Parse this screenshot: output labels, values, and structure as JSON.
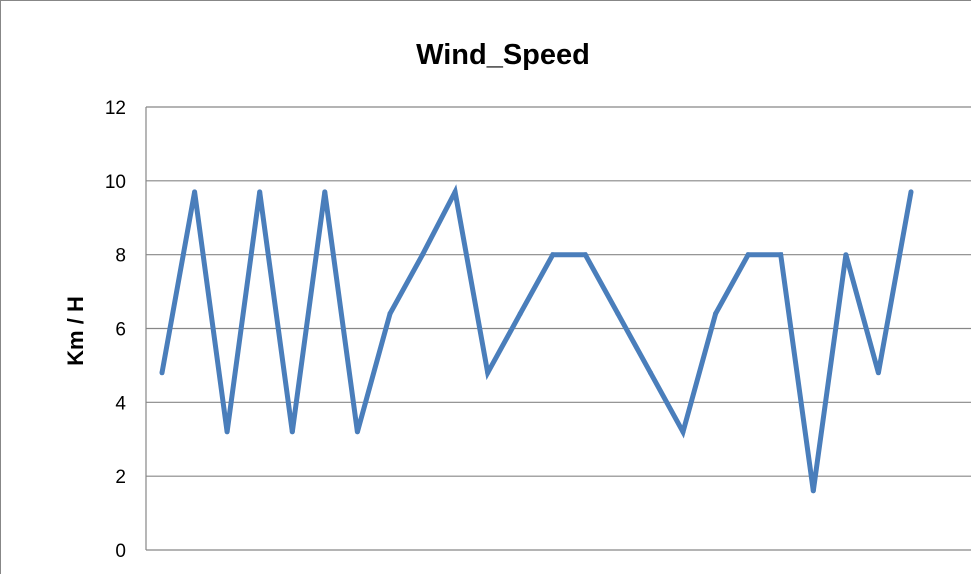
{
  "chart_data": {
    "type": "line",
    "title": "Wind_Speed",
    "xlabel": "",
    "ylabel": "Km / H",
    "ylim": [
      0,
      12
    ],
    "yticks": [
      0,
      2,
      4,
      6,
      8,
      10,
      12
    ],
    "grid": true,
    "legend": "none",
    "series": [
      {
        "color": "#4A7EBB",
        "values": [
          4.8,
          9.7,
          3.2,
          9.7,
          3.2,
          9.7,
          3.2,
          6.4,
          8.0,
          9.7,
          4.8,
          6.4,
          8.0,
          8.0,
          6.4,
          4.8,
          3.2,
          6.4,
          8.0,
          8.0,
          1.6,
          8.0,
          4.8,
          9.7
        ]
      }
    ]
  }
}
